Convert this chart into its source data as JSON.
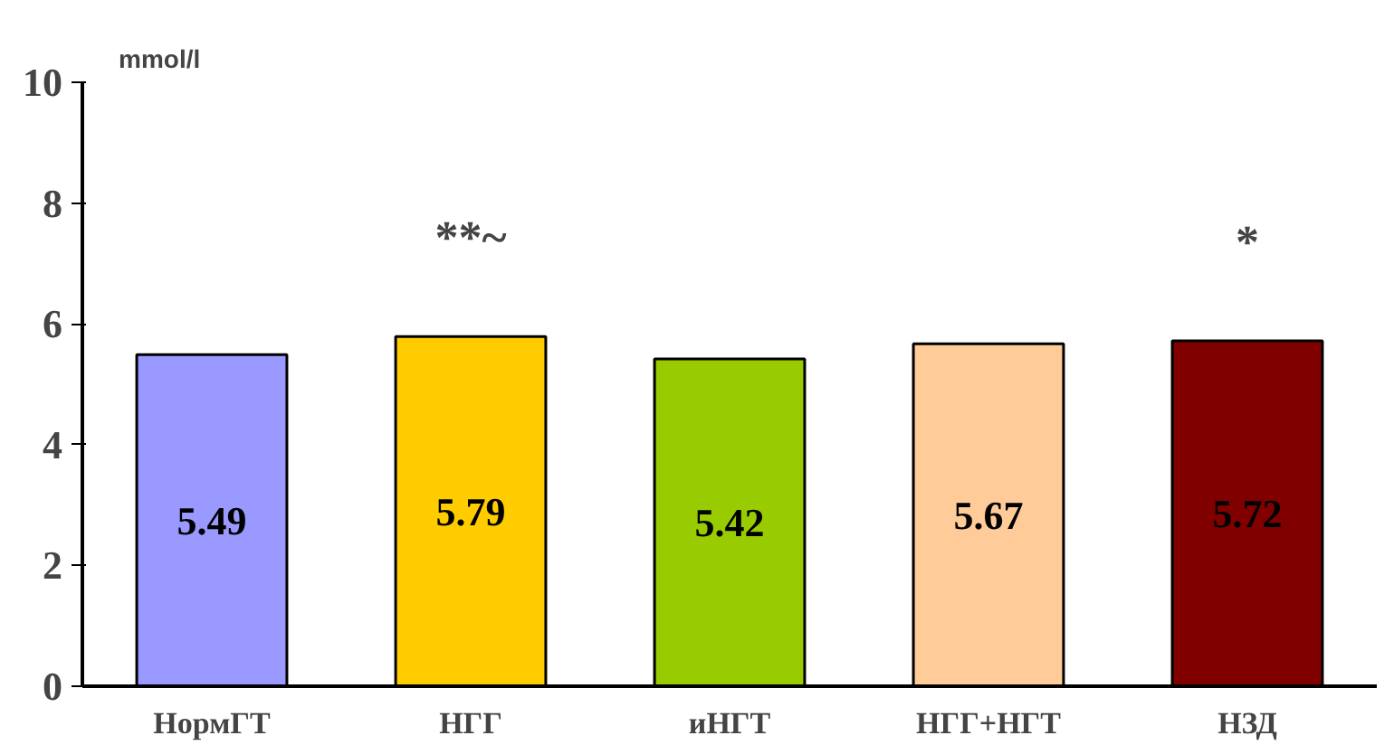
{
  "chart_data": {
    "type": "bar",
    "ylabel": "mmol/l",
    "categories": [
      "НормГТ",
      "НГГ",
      "иНГТ",
      "НГГ+НГТ",
      "НЗД"
    ],
    "values": [
      5.49,
      5.79,
      5.42,
      5.67,
      5.72
    ],
    "colors": [
      "#9999ff",
      "#ffcc00",
      "#99cc00",
      "#ffcc99",
      "#800000"
    ],
    "data_labels": true,
    "ylim": [
      0,
      10
    ],
    "yticks": [
      0,
      2,
      4,
      6,
      8,
      10
    ],
    "grid": false,
    "annotations": [
      {
        "text": "**~",
        "x": "НГГ",
        "y": 5.79
      },
      {
        "text": "*",
        "x": "НЗД",
        "y": 5.72
      }
    ]
  }
}
